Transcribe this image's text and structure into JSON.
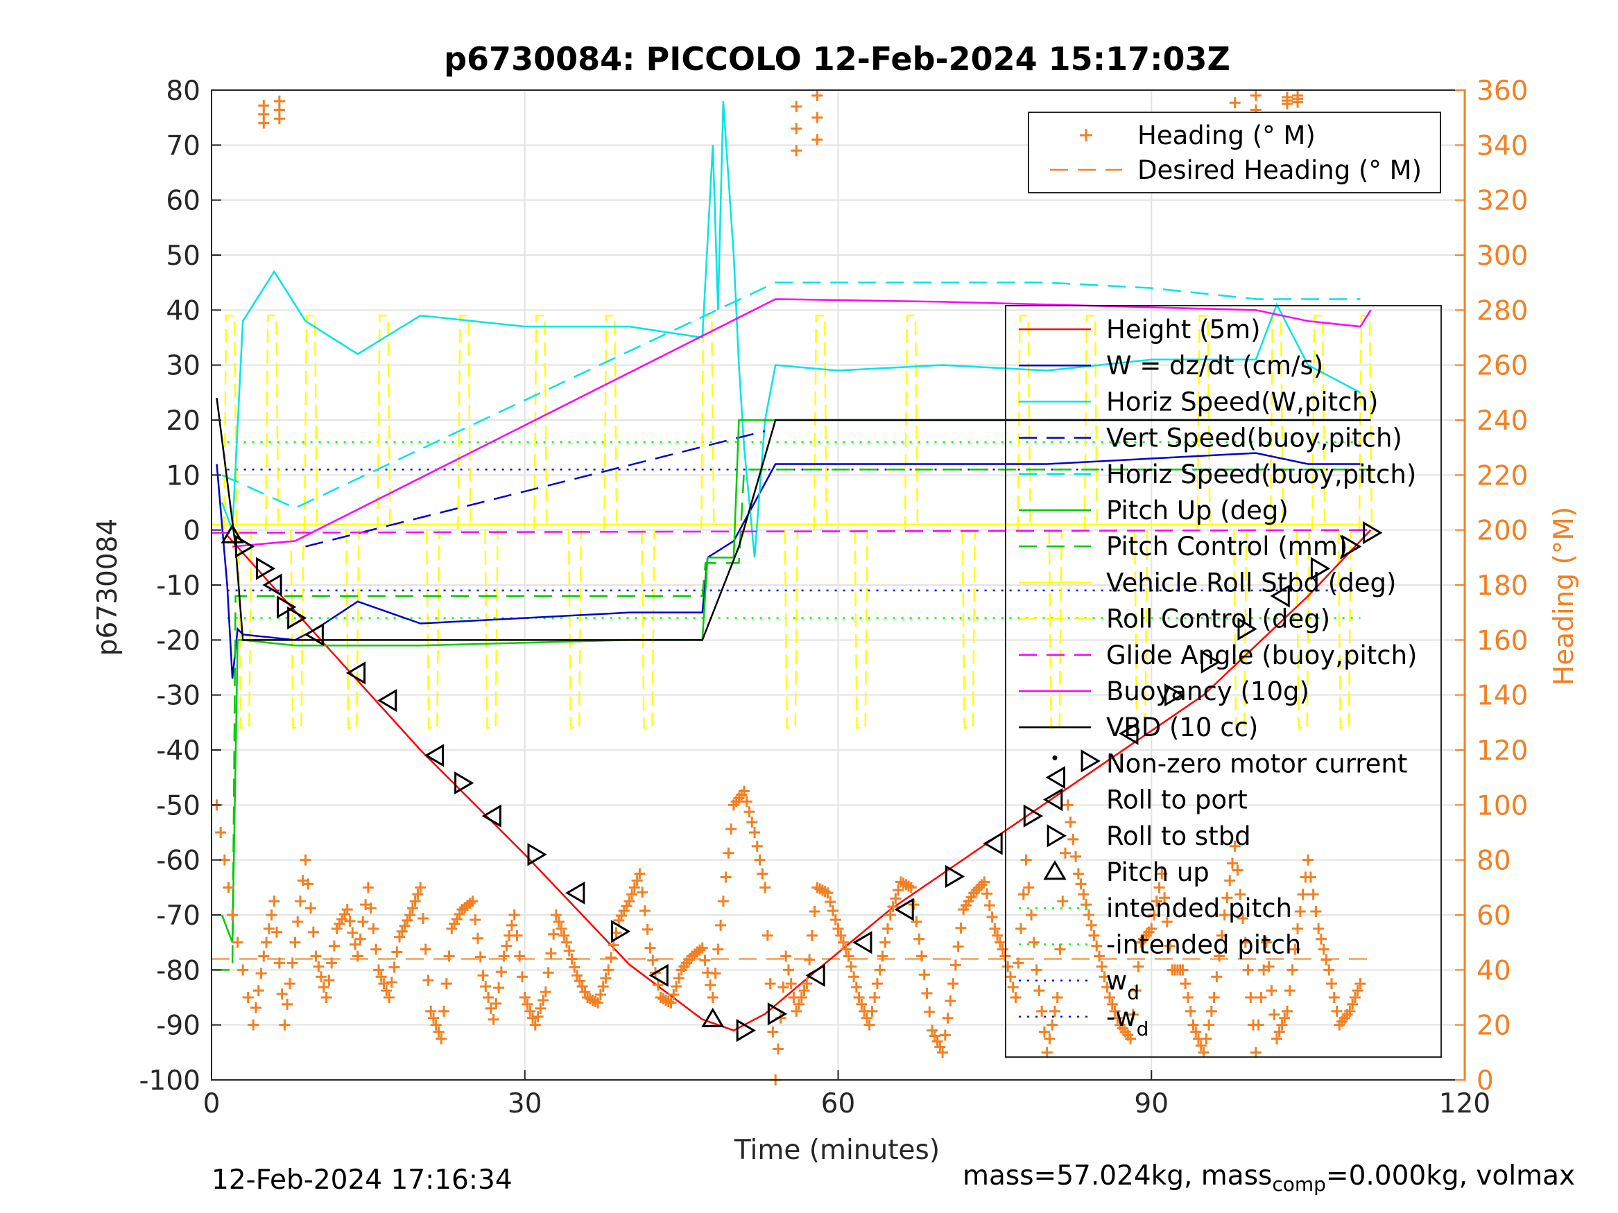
{
  "footer": {
    "timestamp": "12-Feb-2024 17:16:34",
    "mass_prefix": "mass=57.024kg, mass",
    "mass_sub": "comp",
    "mass_suffix": "=0.000kg, volmax"
  },
  "chart_data": {
    "type": "line",
    "title": "p6730084: PICCOLO 12-Feb-2024 15:17:03Z",
    "xlabel": "Time (minutes)",
    "ylabel": "p6730084",
    "y2label": "Heading (°M)",
    "xlim": [
      0,
      120
    ],
    "ylim": [
      -100,
      80
    ],
    "y2lim": [
      0,
      360
    ],
    "xticks": [
      "0",
      "30",
      "60",
      "90",
      "120"
    ],
    "yticks": [
      "80",
      "70",
      "60",
      "50",
      "40",
      "30",
      "20",
      "10",
      "0",
      "-10",
      "-20",
      "-30",
      "-40",
      "-50",
      "-60",
      "-70",
      "-80",
      "-90",
      "-100"
    ],
    "y2ticks": [
      "360",
      "340",
      "320",
      "300",
      "280",
      "260",
      "240",
      "220",
      "200",
      "180",
      "160",
      "140",
      "120",
      "100",
      "80",
      "60",
      "40",
      "20",
      "0"
    ],
    "grid": true,
    "legend_heading": [
      {
        "label": "Heading (° M)",
        "color": "#F28022",
        "style": "plus"
      },
      {
        "label": "Desired Heading (° M)",
        "color": "#F28022",
        "style": "dash"
      }
    ],
    "legend_main": [
      {
        "label": "Height (5m)",
        "color": "#FF0000",
        "style": "solid"
      },
      {
        "label": "W = dz/dt (cm/s)",
        "color": "#0000CC",
        "style": "solid"
      },
      {
        "label": "Horiz Speed(W,pitch)",
        "color": "#00E5E5",
        "style": "solid"
      },
      {
        "label": "Vert Speed(buoy,pitch)",
        "color": "#0000CC",
        "style": "dash"
      },
      {
        "label": "Horiz Speed(buoy,pitch)",
        "color": "#00E5E5",
        "style": "dash"
      },
      {
        "label": "Pitch Up (deg)",
        "color": "#00CC00",
        "style": "solid"
      },
      {
        "label": "Pitch Control (mm)",
        "color": "#00CC00",
        "style": "dash"
      },
      {
        "label": "Vehicle Roll Stbd (deg)",
        "color": "#FFFF00",
        "style": "solid"
      },
      {
        "label": "Roll Control (deg)",
        "color": "#FFFF00",
        "style": "dash"
      },
      {
        "label": "Glide Angle (buoy,pitch)",
        "color": "#FF00FF",
        "style": "dash"
      },
      {
        "label": "Buoyancy (10g)",
        "color": "#FF00FF",
        "style": "solid"
      },
      {
        "label": "VBD (10 cc)",
        "color": "#000000",
        "style": "solid"
      },
      {
        "label": "Non-zero motor current",
        "color": "#000000",
        "style": "dot"
      },
      {
        "label": "Roll to port",
        "color": "#000000",
        "style": "tri-left"
      },
      {
        "label": "Roll to stbd",
        "color": "#000000",
        "style": "tri-right"
      },
      {
        "label": "Pitch up",
        "color": "#000000",
        "style": "tri-up"
      },
      {
        "label": "intended pitch",
        "color": "#00FF00",
        "style": "dotted"
      },
      {
        "label": "-intended pitch",
        "color": "#00FF00",
        "style": "dotted"
      },
      {
        "label": "w",
        "sub": "d",
        "color": "#0000FF",
        "style": "dotted"
      },
      {
        "label": "-w",
        "sub": "d",
        "color": "#0000FF",
        "style": "dotted"
      }
    ],
    "series": [
      {
        "name": "Height (5m)",
        "color": "#FF0000",
        "x": [
          1.5,
          10,
          20,
          30,
          40,
          47,
          50,
          53,
          58,
          65,
          75,
          85,
          95,
          105,
          111
        ],
        "y": [
          -1,
          -19,
          -40,
          -59,
          -79,
          -89,
          -91,
          -88,
          -80,
          -69,
          -56,
          -43,
          -30,
          -12,
          0
        ]
      },
      {
        "name": "W = dz/dt (cm/s)",
        "color": "#0000CC",
        "x": [
          0.5,
          1.5,
          2,
          2.5,
          3,
          8,
          10,
          14,
          20,
          30,
          40,
          47,
          47.5,
          50,
          52,
          54,
          60,
          70,
          80,
          90,
          100,
          105,
          110
        ],
        "y": [
          12,
          -10,
          -27,
          -18,
          -19,
          -20,
          -18,
          -13,
          -17,
          -16,
          -15,
          -15,
          -5,
          -2,
          5,
          12,
          12,
          12,
          12,
          13,
          14,
          12,
          12
        ]
      },
      {
        "name": "Horiz Speed(W,pitch)",
        "color": "#00E5E5",
        "x": [
          1,
          2,
          3,
          6,
          9,
          14,
          20,
          30,
          40,
          47,
          48,
          48.5,
          49,
          50,
          50.5,
          51,
          52,
          53,
          54,
          60,
          70,
          80,
          90,
          100,
          102,
          105,
          110
        ],
        "y": [
          5,
          0,
          38,
          47,
          38,
          32,
          39,
          37,
          37,
          35,
          70,
          40,
          78,
          50,
          30,
          15,
          -5,
          20,
          30,
          29,
          30,
          29,
          31,
          31,
          41,
          30,
          25
        ]
      },
      {
        "name": "Vert Speed(buoy,pitch)",
        "color": "#0000CC",
        "style": "dash",
        "x": [
          9,
          53
        ],
        "y": [
          -3,
          18
        ]
      },
      {
        "name": "Horiz Speed(buoy,pitch)",
        "color": "#00E5E5",
        "style": "dash",
        "x": [
          1,
          8,
          54,
          60,
          70,
          80,
          90,
          100,
          110
        ],
        "y": [
          10,
          4,
          45,
          45,
          45,
          45,
          44,
          42,
          42
        ]
      },
      {
        "name": "Pitch Up (deg)",
        "color": "#00CC00",
        "x": [
          1,
          2,
          2.5,
          3,
          8,
          20,
          40,
          47,
          47.5,
          50,
          50.5,
          51,
          60,
          70,
          80,
          90,
          100,
          110
        ],
        "y": [
          -70,
          -75,
          -20,
          -20,
          -21,
          -21,
          -20,
          -20,
          -5,
          -5,
          20,
          20,
          20,
          20,
          20,
          20,
          20,
          20
        ]
      },
      {
        "name": "Pitch Control (mm)",
        "color": "#00CC00",
        "style": "dash",
        "x": [
          0,
          2,
          2.3,
          47,
          47.3,
          50.5,
          51,
          111
        ],
        "y": [
          -80,
          -80,
          -12,
          -12,
          -6,
          -6,
          11,
          11
        ]
      },
      {
        "name": "Glide Angle (buoy,pitch)",
        "color": "#FF00FF",
        "style": "dash",
        "x": [
          0,
          111
        ],
        "y": [
          -0.5,
          0
        ]
      },
      {
        "name": "Buoyancy (10g)",
        "color": "#FF00FF",
        "x": [
          2,
          8,
          54,
          70,
          80,
          90,
          100,
          105,
          110,
          111
        ],
        "y": [
          -3,
          -2,
          42,
          41.5,
          41,
          40.5,
          40,
          38,
          37,
          40
        ]
      },
      {
        "name": "VBD (10 cc)",
        "color": "#000000",
        "x": [
          0.5,
          2.3,
          3,
          47,
          50.5,
          54,
          111
        ],
        "y": [
          24,
          -3,
          -20,
          -20,
          -3,
          20,
          20
        ]
      }
    ],
    "reference_lines": [
      {
        "name": "intended pitch",
        "color": "#00FF00",
        "y": 16
      },
      {
        "name": "-intended pitch",
        "color": "#00FF00",
        "y": -16
      },
      {
        "name": "w_d",
        "color": "#0000FF",
        "y": 11
      },
      {
        "name": "-w_d",
        "color": "#0000FF",
        "y": -11
      }
    ],
    "desired_heading": {
      "y2": 44,
      "color": "#F28022"
    },
    "heading_deg": {
      "x": [
        0.5,
        2,
        4,
        5,
        6,
        7,
        8,
        9,
        10,
        11,
        12,
        13,
        14,
        15,
        16,
        17,
        18,
        19,
        20,
        21,
        22,
        23,
        24,
        25,
        26,
        27,
        28,
        29,
        30,
        31,
        32,
        33,
        34,
        35,
        36,
        37,
        38,
        39,
        40,
        41,
        42,
        43,
        44,
        45,
        46,
        47,
        48,
        49,
        50,
        51,
        52,
        53,
        54,
        55,
        56,
        57,
        58,
        59,
        60,
        61,
        62,
        63,
        64,
        65,
        66,
        67,
        68,
        69,
        70,
        71,
        72,
        73,
        74,
        75,
        76,
        77,
        78,
        79,
        80,
        81,
        82,
        83,
        84,
        85,
        86,
        87,
        88,
        89,
        90,
        91,
        92,
        93,
        94,
        95,
        96,
        97,
        98,
        99,
        100,
        101,
        102,
        103,
        104,
        105,
        106,
        107,
        108,
        109,
        110
      ],
      "y": [
        100,
        60,
        20,
        45,
        65,
        20,
        50,
        80,
        45,
        30,
        55,
        62,
        45,
        70,
        40,
        30,
        52,
        60,
        70,
        25,
        15,
        55,
        62,
        65,
        38,
        22,
        45,
        60,
        30,
        20,
        32,
        60,
        50,
        38,
        30,
        28,
        40,
        58,
        65,
        75,
        48,
        30,
        28,
        40,
        45,
        48,
        30,
        65,
        100,
        105,
        90,
        70,
        0,
        45,
        25,
        35,
        70,
        68,
        55,
        45,
        30,
        20,
        40,
        60,
        72,
        70,
        45,
        18,
        10,
        35,
        62,
        68,
        72,
        55,
        45,
        30,
        80,
        40,
        10,
        30,
        100,
        75,
        60,
        45,
        30,
        20,
        15,
        50,
        55,
        75,
        40,
        40,
        20,
        10,
        30,
        60,
        85,
        50,
        10,
        50,
        15,
        25,
        55,
        80,
        55,
        40,
        20,
        25,
        35
      ]
    },
    "heading_high_clusters": [
      {
        "x": [
          5,
          6.5
        ],
        "y": [
          348,
          356
        ]
      },
      {
        "x": [
          56,
          58
        ],
        "y": [
          338,
          358
        ]
      },
      {
        "x": [
          98,
          100
        ],
        "y": [
          345,
          358
        ]
      },
      {
        "x": [
          103,
          104
        ],
        "y": [
          355,
          358
        ]
      }
    ],
    "roll_markers": [
      {
        "x": 2,
        "y": -1,
        "t": "up"
      },
      {
        "x": 3,
        "y": -3,
        "t": "R"
      },
      {
        "x": 5,
        "y": -7,
        "t": "R"
      },
      {
        "x": 6,
        "y": -10,
        "t": "L"
      },
      {
        "x": 7,
        "y": -14,
        "t": "R"
      },
      {
        "x": 8,
        "y": -16,
        "t": "R"
      },
      {
        "x": 10,
        "y": -19,
        "t": "L"
      },
      {
        "x": 14,
        "y": -26,
        "t": "L"
      },
      {
        "x": 17,
        "y": -31,
        "t": "L"
      },
      {
        "x": 21.5,
        "y": -41,
        "t": "L"
      },
      {
        "x": 24,
        "y": -46,
        "t": "R"
      },
      {
        "x": 27,
        "y": -52,
        "t": "L"
      },
      {
        "x": 31,
        "y": -59,
        "t": "R"
      },
      {
        "x": 35,
        "y": -66,
        "t": "L"
      },
      {
        "x": 39,
        "y": -73,
        "t": "R"
      },
      {
        "x": 43,
        "y": -81,
        "t": "L"
      },
      {
        "x": 48,
        "y": -89,
        "t": "up"
      },
      {
        "x": 51,
        "y": -91,
        "t": "R"
      },
      {
        "x": 54,
        "y": -88,
        "t": "R"
      },
      {
        "x": 58,
        "y": -81,
        "t": "L"
      },
      {
        "x": 62.5,
        "y": -75,
        "t": "L"
      },
      {
        "x": 66.5,
        "y": -69,
        "t": "L"
      },
      {
        "x": 71,
        "y": -63,
        "t": "R"
      },
      {
        "x": 75,
        "y": -57,
        "t": "L"
      },
      {
        "x": 78.5,
        "y": -52,
        "t": "R"
      },
      {
        "x": 81,
        "y": -45,
        "t": "L"
      },
      {
        "x": 84,
        "y": -42,
        "t": "R"
      },
      {
        "x": 88,
        "y": -37,
        "t": "L"
      },
      {
        "x": 92,
        "y": -30,
        "t": "R"
      },
      {
        "x": 95.5,
        "y": -24,
        "t": "R"
      },
      {
        "x": 99,
        "y": -18,
        "t": "R"
      },
      {
        "x": 102.5,
        "y": -12,
        "t": "L"
      },
      {
        "x": 106,
        "y": -7,
        "t": "R"
      },
      {
        "x": 109,
        "y": -3,
        "t": "R"
      },
      {
        "x": 111,
        "y": -0.5,
        "t": "R"
      }
    ],
    "roll_control_pulses_x": [
      1.8,
      3.2,
      5.8,
      8.2,
      9.5,
      13.5,
      16.5,
      21.2,
      24.2,
      26.8,
      31.5,
      34.8,
      38.2,
      41.8,
      47.5,
      55.5,
      58.3,
      62.2,
      67,
      72.5,
      77.8,
      80.8,
      84.2,
      89,
      95,
      98.5,
      102,
      104.5,
      106,
      108.5,
      110.5
    ]
  }
}
